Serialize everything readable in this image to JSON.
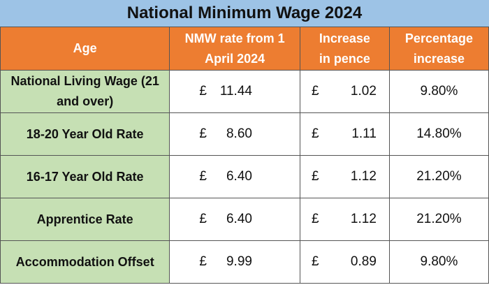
{
  "title": "National Minimum Wage 2024",
  "headers": [
    "Age",
    "NMW rate from 1 April 2024",
    "Increase in pence",
    "Percentage increase"
  ],
  "currency": "£",
  "rows": [
    {
      "age": "National Living Wage (21 and over)",
      "rate": "11.44",
      "increase": "1.02",
      "pct": "9.80%"
    },
    {
      "age": "18-20 Year Old Rate",
      "rate": "8.60",
      "increase": "1.11",
      "pct": "14.80%"
    },
    {
      "age": "16-17 Year Old Rate",
      "rate": "6.40",
      "increase": "1.12",
      "pct": "21.20%"
    },
    {
      "age": "Apprentice Rate",
      "rate": "6.40",
      "increase": "1.12",
      "pct": "21.20%"
    },
    {
      "age": "Accommodation Offset",
      "rate": "9.99",
      "increase": "0.89",
      "pct": "9.80%"
    }
  ],
  "colors": {
    "title_bg": "#9DC3E6",
    "header_bg": "#ED7D31",
    "age_bg": "#C6E0B4"
  }
}
